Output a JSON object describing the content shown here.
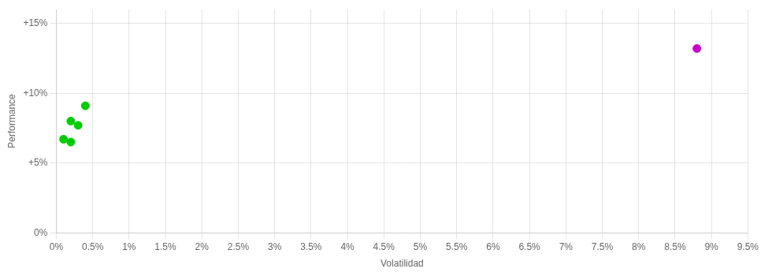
{
  "chart_data": {
    "type": "scatter",
    "xlabel": "Volatilidad",
    "ylabel": "Performance",
    "xlim": [
      0,
      0.095
    ],
    "ylim": [
      0,
      0.16
    ],
    "xticks": [
      {
        "value": 0,
        "label": "0%"
      },
      {
        "value": 0.005,
        "label": "0.5%"
      },
      {
        "value": 0.01,
        "label": "1%"
      },
      {
        "value": 0.015,
        "label": "1.5%"
      },
      {
        "value": 0.02,
        "label": "2%"
      },
      {
        "value": 0.025,
        "label": "2.5%"
      },
      {
        "value": 0.03,
        "label": "3%"
      },
      {
        "value": 0.035,
        "label": "3.5%"
      },
      {
        "value": 0.04,
        "label": "4%"
      },
      {
        "value": 0.045,
        "label": "4.5%"
      },
      {
        "value": 0.05,
        "label": "5%"
      },
      {
        "value": 0.055,
        "label": "5.5%"
      },
      {
        "value": 0.06,
        "label": "6%"
      },
      {
        "value": 0.065,
        "label": "6.5%"
      },
      {
        "value": 0.07,
        "label": "7%"
      },
      {
        "value": 0.075,
        "label": "7.5%"
      },
      {
        "value": 0.08,
        "label": "8%"
      },
      {
        "value": 0.085,
        "label": "8.5%"
      },
      {
        "value": 0.09,
        "label": "9%"
      },
      {
        "value": 0.095,
        "label": "9.5%"
      }
    ],
    "yticks": [
      {
        "value": 0,
        "label": "0%"
      },
      {
        "value": 0.05,
        "label": "+5%"
      },
      {
        "value": 0.1,
        "label": "+10%"
      },
      {
        "value": 0.15,
        "label": "+15%"
      }
    ],
    "grid": true,
    "series": [
      {
        "color": "#00cc00",
        "x": [
          0.004,
          0.002,
          0.003,
          0.001,
          0.002
        ],
        "values": [
          0.091,
          0.08,
          0.077,
          0.067,
          0.065
        ]
      },
      {
        "color": "#cc00cc",
        "x": [
          0.088
        ],
        "values": [
          0.132
        ]
      }
    ]
  }
}
